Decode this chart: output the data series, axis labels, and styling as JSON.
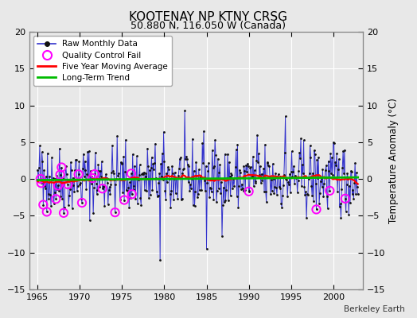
{
  "title": "KOOTENAY NP KTNY CRSG",
  "subtitle": "50.880 N, 116.050 W (Canada)",
  "ylabel": "Temperature Anomaly (°C)",
  "credit": "Berkeley Earth",
  "xlim": [
    1964.0,
    2003.5
  ],
  "ylim": [
    -15,
    20
  ],
  "yticks": [
    -15,
    -10,
    -5,
    0,
    5,
    10,
    15,
    20
  ],
  "xticks": [
    1965,
    1970,
    1975,
    1980,
    1985,
    1990,
    1995,
    2000
  ],
  "bg_color": "#e8e8e8",
  "plot_bg_color": "#e8e8e8",
  "grid_color": "#ffffff",
  "line_color": "#3333cc",
  "dot_color": "#111111",
  "ma_color": "#ff0000",
  "trend_color": "#00bb00",
  "qc_color": "#ff00ff",
  "seed": 42,
  "n_months": 456,
  "start_year": 1965,
  "start_month": 1
}
